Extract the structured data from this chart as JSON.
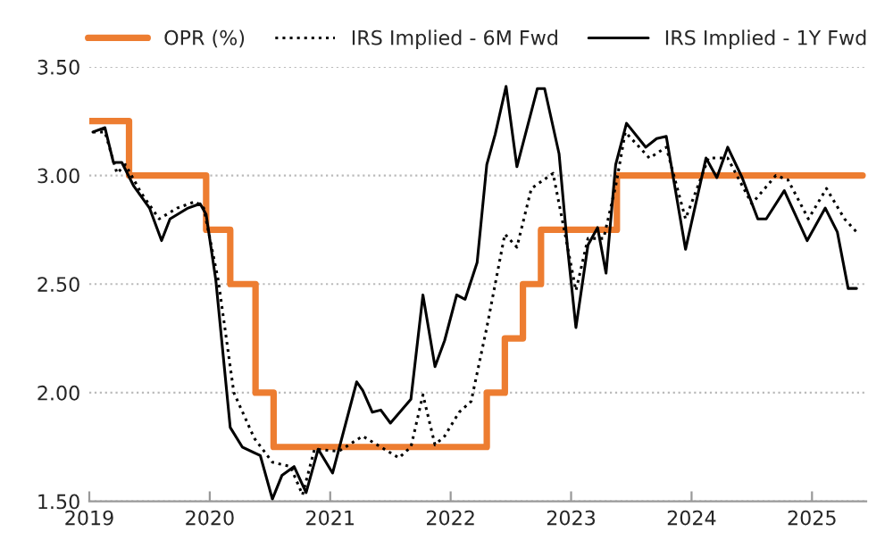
{
  "chart_data": {
    "type": "line",
    "legend": "top",
    "grid": "y",
    "xlim": [
      2019,
      2025.45
    ],
    "xticks": [
      2019,
      2020,
      2021,
      2022,
      2023,
      2024,
      2025
    ],
    "ylim": [
      1.5,
      3.5
    ],
    "yticks": [
      {
        "value": 1.5,
        "label": "1.50"
      },
      {
        "value": 2.0,
        "label": "2.00"
      },
      {
        "value": 2.5,
        "label": "2.50"
      },
      {
        "value": 3.0,
        "label": "3.00"
      },
      {
        "value": 3.5,
        "label": "3.50"
      }
    ],
    "series": [
      {
        "name": "OPR (%)",
        "type": "step",
        "color": "#ed7d31",
        "line_style": "solid",
        "x": [
          2019.0,
          2019.33,
          2019.97,
          2020.17,
          2020.38,
          2020.53,
          2022.3,
          2022.45,
          2022.6,
          2022.75,
          2023.38,
          2025.42
        ],
        "values": [
          3.25,
          3.0,
          2.75,
          2.5,
          2.0,
          1.75,
          2.0,
          2.25,
          2.5,
          2.75,
          3.0,
          3.0
        ]
      },
      {
        "name": "IRS Implied - 6M Fwd",
        "color": "#000000",
        "line_style": "dotted",
        "x": [
          2019.03,
          2019.13,
          2019.23,
          2019.3,
          2019.43,
          2019.58,
          2019.73,
          2019.88,
          2019.95,
          2020.07,
          2020.2,
          2020.37,
          2020.52,
          2020.67,
          2020.77,
          2020.87,
          2021.07,
          2021.27,
          2021.42,
          2021.57,
          2021.67,
          2021.77,
          2021.87,
          2021.95,
          2022.07,
          2022.17,
          2022.3,
          2022.45,
          2022.55,
          2022.67,
          2022.85,
          2022.95,
          2023.04,
          2023.14,
          2023.27,
          2023.37,
          2023.45,
          2023.65,
          2023.79,
          2023.95,
          2024.14,
          2024.3,
          2024.5,
          2024.7,
          2024.8,
          2024.97,
          2025.12,
          2025.27,
          2025.37
        ],
        "values": [
          3.2,
          3.2,
          3.01,
          3.05,
          2.92,
          2.8,
          2.85,
          2.88,
          2.85,
          2.52,
          2.0,
          1.79,
          1.68,
          1.66,
          1.53,
          1.74,
          1.73,
          1.8,
          1.75,
          1.7,
          1.75,
          1.99,
          1.76,
          1.8,
          1.91,
          1.96,
          2.3,
          2.73,
          2.67,
          2.94,
          3.01,
          2.73,
          2.47,
          2.71,
          2.71,
          2.95,
          3.2,
          3.08,
          3.13,
          2.8,
          3.08,
          3.08,
          2.87,
          3.0,
          2.98,
          2.8,
          2.94,
          2.8,
          2.74
        ]
      },
      {
        "name": "IRS Implied - 1Y Fwd",
        "color": "#000000",
        "line_style": "solid",
        "x": [
          2019.03,
          2019.13,
          2019.2,
          2019.27,
          2019.37,
          2019.5,
          2019.6,
          2019.67,
          2019.82,
          2019.92,
          2019.97,
          2020.05,
          2020.17,
          2020.27,
          2020.42,
          2020.52,
          2020.6,
          2020.7,
          2020.8,
          2020.9,
          2021.02,
          2021.22,
          2021.27,
          2021.35,
          2021.42,
          2021.5,
          2021.67,
          2021.77,
          2021.87,
          2021.95,
          2022.05,
          2022.12,
          2022.22,
          2022.3,
          2022.37,
          2022.46,
          2022.55,
          2022.72,
          2022.78,
          2022.9,
          2022.97,
          2023.04,
          2023.14,
          2023.22,
          2023.29,
          2023.37,
          2023.46,
          2023.62,
          2023.71,
          2023.79,
          2023.95,
          2024.12,
          2024.21,
          2024.3,
          2024.42,
          2024.55,
          2024.62,
          2024.77,
          2024.96,
          2025.11,
          2025.21,
          2025.3,
          2025.37
        ],
        "values": [
          3.2,
          3.22,
          3.06,
          3.06,
          2.95,
          2.85,
          2.7,
          2.8,
          2.85,
          2.87,
          2.82,
          2.52,
          1.84,
          1.75,
          1.71,
          1.51,
          1.62,
          1.66,
          1.54,
          1.74,
          1.63,
          2.05,
          2.01,
          1.91,
          1.92,
          1.86,
          1.97,
          2.45,
          2.12,
          2.24,
          2.45,
          2.43,
          2.6,
          3.05,
          3.19,
          3.41,
          3.04,
          3.4,
          3.4,
          3.1,
          2.67,
          2.3,
          2.68,
          2.76,
          2.55,
          3.05,
          3.24,
          3.13,
          3.17,
          3.18,
          2.66,
          3.08,
          2.99,
          3.13,
          2.99,
          2.8,
          2.8,
          2.93,
          2.7,
          2.85,
          2.74,
          2.48,
          2.48
        ]
      }
    ]
  }
}
